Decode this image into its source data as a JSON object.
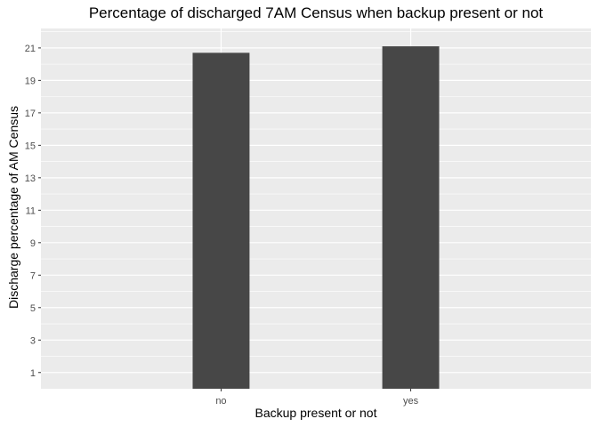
{
  "chart_data": {
    "type": "bar",
    "title": "Percentage of discharged 7AM Census when backup present or not",
    "xlabel": "Backup present or not",
    "ylabel": "Discharge percentage of AM Census",
    "categories": [
      "no",
      "yes"
    ],
    "values": [
      20.7,
      21.1
    ],
    "ylim": [
      0,
      22.2
    ],
    "yticks": [
      1,
      3,
      5,
      7,
      9,
      11,
      13,
      15,
      17,
      19,
      21
    ],
    "grid": true,
    "colors": {
      "panel": "#ebebeb",
      "grid": "#ffffff",
      "bar": "#474747",
      "tick_text": "#4d4d4d",
      "tick_mark": "#333333"
    }
  }
}
